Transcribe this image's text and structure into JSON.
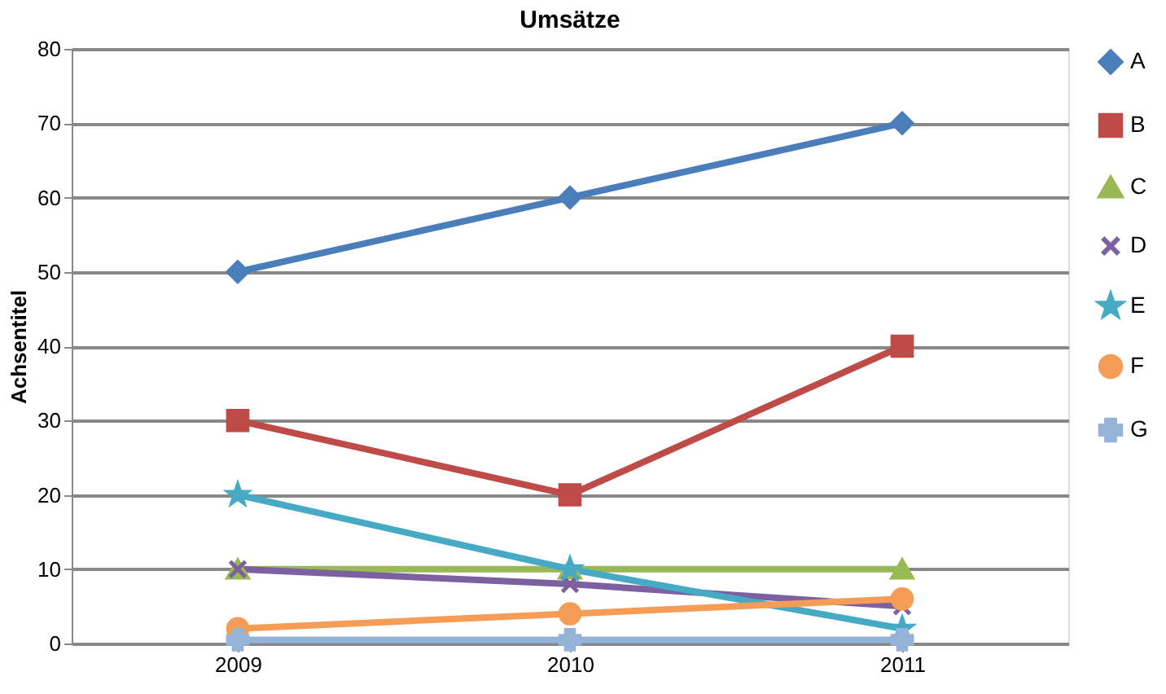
{
  "chart_data": {
    "type": "line",
    "title": "Umsätze",
    "ylabel": "Achsentitel",
    "categories": [
      "2009",
      "2010",
      "2011"
    ],
    "series": [
      {
        "name": "A",
        "color": "#4a7ebb",
        "marker": "diamond",
        "values": [
          50,
          60,
          70
        ]
      },
      {
        "name": "B",
        "color": "#be4b48",
        "marker": "square",
        "values": [
          30,
          20,
          40
        ]
      },
      {
        "name": "C",
        "color": "#98b954",
        "marker": "triangle",
        "values": [
          10,
          10,
          10
        ]
      },
      {
        "name": "D",
        "color": "#7d60a0",
        "marker": "x",
        "values": [
          10,
          8,
          5
        ]
      },
      {
        "name": "E",
        "color": "#46aac5",
        "marker": "star",
        "values": [
          20,
          10,
          2
        ]
      },
      {
        "name": "F",
        "color": "#f59d56",
        "marker": "circle",
        "values": [
          2,
          4,
          6
        ]
      },
      {
        "name": "G",
        "color": "#95b3d7",
        "marker": "cross",
        "values": [
          0.5,
          0.5,
          0.5
        ]
      }
    ],
    "ylim": [
      0,
      80
    ],
    "yticks": [
      0,
      10,
      20,
      30,
      40,
      50,
      60,
      70,
      80
    ],
    "grid": "y",
    "legend": "right",
    "line_style": "solid"
  }
}
